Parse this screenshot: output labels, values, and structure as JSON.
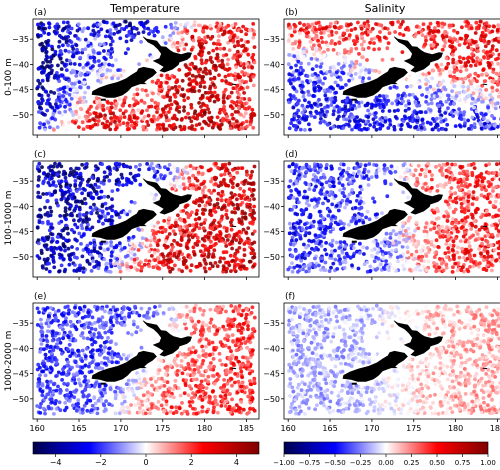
{
  "figure": {
    "col_titles": [
      "Temperature",
      "Salinity"
    ],
    "row_labels": [
      "0-100 m",
      "100-1000 m",
      "1000-2000 m"
    ]
  },
  "chart_data": [
    {
      "type": "scatter",
      "panel_label": "(a)",
      "column": "Temperature",
      "row": "0-100 m",
      "xlim": [
        159.5,
        186.5
      ],
      "ylim": [
        -54,
        -31
      ],
      "xticks": [
        160,
        165,
        170,
        175,
        180,
        185
      ],
      "yticks": [
        -35,
        -40,
        -45,
        -50
      ],
      "color_scale": "temp",
      "pattern": "warm_south_east_cool_north_west",
      "amplitude": 0.7
    },
    {
      "type": "scatter",
      "panel_label": "(b)",
      "column": "Salinity",
      "row": "0-100 m",
      "xlim": [
        159.5,
        186.5
      ],
      "ylim": [
        -54,
        -31
      ],
      "xticks": [
        160,
        165,
        170,
        175,
        180,
        185
      ],
      "yticks": [
        -35,
        -40,
        -45,
        -50
      ],
      "color_scale": "sal",
      "pattern": "fresh_south_west_salty_north",
      "amplitude": 0.6
    },
    {
      "type": "scatter",
      "panel_label": "(c)",
      "column": "Temperature",
      "row": "100-1000 m",
      "xlim": [
        159.5,
        186.5
      ],
      "ylim": [
        -54,
        -31
      ],
      "xticks": [
        160,
        165,
        170,
        175,
        180,
        185
      ],
      "yticks": [
        -35,
        -40,
        -45,
        -50
      ],
      "color_scale": "temp",
      "pattern": "cool_west_warm_east",
      "amplitude": 0.75
    },
    {
      "type": "scatter",
      "panel_label": "(d)",
      "column": "Salinity",
      "row": "100-1000 m",
      "xlim": [
        159.5,
        186.5
      ],
      "ylim": [
        -54,
        -31
      ],
      "xticks": [
        160,
        165,
        170,
        175,
        180,
        185
      ],
      "yticks": [
        -35,
        -40,
        -45,
        -50
      ],
      "color_scale": "sal",
      "pattern": "fresh_west_salty_east",
      "amplitude": 0.6
    },
    {
      "type": "scatter",
      "panel_label": "(e)",
      "column": "Temperature",
      "row": "1000-2000 m",
      "xlim": [
        159.5,
        186.5
      ],
      "ylim": [
        -54,
        -31
      ],
      "xticks": [
        160,
        165,
        170,
        175,
        180,
        185
      ],
      "yticks": [
        -35,
        -40,
        -45,
        -50
      ],
      "color_scale": "temp",
      "pattern": "cool_west_warm_east",
      "amplitude": 0.45
    },
    {
      "type": "scatter",
      "panel_label": "(f)",
      "column": "Salinity",
      "row": "1000-2000 m",
      "xlim": [
        159.5,
        186.5
      ],
      "ylim": [
        -54,
        -31
      ],
      "xticks": [
        160,
        165,
        170,
        175,
        180,
        185
      ],
      "yticks": [
        -35,
        -40,
        -45,
        -50
      ],
      "color_scale": "sal",
      "pattern": "weak_fresh_west",
      "amplitude": 0.3
    }
  ],
  "colorbars": [
    {
      "name": "temp",
      "range": [
        -5,
        5
      ],
      "ticks": [
        -4,
        -2,
        0,
        2,
        4
      ],
      "tick_labels": [
        "−4",
        "−2",
        "0",
        "2",
        "4"
      ],
      "colormap": "seismic",
      "colors": [
        "#00004c",
        "#0000ff",
        "#ffffff",
        "#ff0000",
        "#7f0000"
      ]
    },
    {
      "name": "sal",
      "range": [
        -1,
        1
      ],
      "ticks": [
        -1,
        -0.75,
        -0.5,
        -0.25,
        0,
        0.25,
        0.5,
        0.75,
        1
      ],
      "tick_labels": [
        "−1.00",
        "−0.75",
        "−0.50",
        "−0.25",
        "0.00",
        "0.25",
        "0.50",
        "0.75",
        "1.00"
      ],
      "colormap": "seismic",
      "colors": [
        "#00004c",
        "#0000ff",
        "#ffffff",
        "#ff0000",
        "#7f0000"
      ]
    }
  ],
  "land_color": "#000000"
}
